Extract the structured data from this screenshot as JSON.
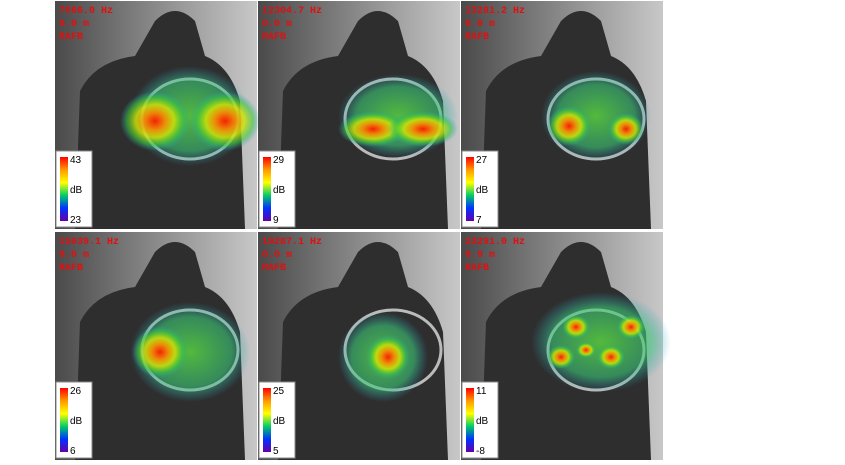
{
  "panels": [
    {
      "frequency": "7666.0 Hz",
      "distance": "0.0 m",
      "mode": "RAFB",
      "scale_max": "43",
      "scale_unit": "dB",
      "scale_min": "23"
    },
    {
      "frequency": "12304.7 Hz",
      "distance": "0.0 m",
      "mode": "RAFB",
      "scale_max": "29",
      "scale_unit": "dB",
      "scale_min": "9"
    },
    {
      "frequency": "13281.2 Hz",
      "distance": "0.0 m",
      "mode": "RAFB",
      "scale_max": "27",
      "scale_unit": "dB",
      "scale_min": "7"
    },
    {
      "frequency": "15039.1 Hz",
      "distance": "0.0 m",
      "mode": "RAFB",
      "scale_max": "26",
      "scale_unit": "dB",
      "scale_min": "6"
    },
    {
      "frequency": "19287.1 Hz",
      "distance": "0.0 m",
      "mode": "RAFB",
      "scale_max": "25",
      "scale_unit": "dB",
      "scale_min": "5"
    },
    {
      "frequency": "23291.0 Hz",
      "distance": "0.0 m",
      "mode": "RAFB",
      "scale_max": "11",
      "scale_unit": "dB",
      "scale_min": "-8"
    }
  ]
}
